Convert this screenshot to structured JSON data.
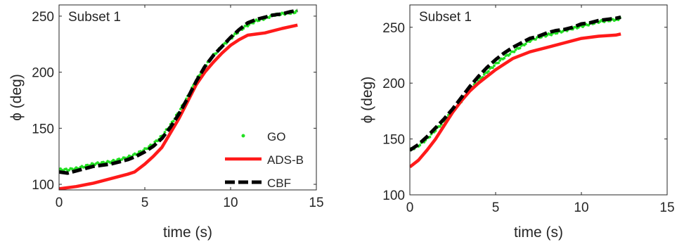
{
  "chart_data": [
    {
      "type": "line",
      "annotation": "Subset 1",
      "xlabel": "time (s)",
      "ylabel": "ϕ (deg)",
      "xlim": [
        0,
        15
      ],
      "ylim": [
        95,
        260
      ],
      "xticks": [
        0,
        5,
        10,
        15
      ],
      "yticks": [
        100,
        150,
        200,
        250
      ],
      "grid": false,
      "legend_position": "lower-right",
      "series": [
        {
          "name": "GO",
          "style": "dots",
          "color": "#22e022",
          "x": [
            0,
            0.5,
            1,
            1.5,
            2,
            2.5,
            3,
            3.5,
            4,
            4.5,
            5,
            5.5,
            6,
            6.5,
            7,
            7.5,
            8,
            8.5,
            9,
            9.5,
            10,
            10.5,
            11,
            11.5,
            12,
            12.5,
            13,
            13.5,
            13.9
          ],
          "y": [
            113,
            113,
            114,
            116,
            118,
            119,
            120,
            122,
            124,
            127,
            131,
            136,
            143,
            153,
            165,
            178,
            193,
            205,
            215,
            223,
            230,
            237,
            242,
            246,
            248,
            251,
            252,
            253,
            254
          ]
        },
        {
          "name": "ADS-B",
          "style": "solid",
          "color": "#ff1a1a",
          "x": [
            0,
            1,
            2,
            3,
            4,
            4.4,
            5,
            5.5,
            6,
            6.5,
            7,
            7.5,
            8,
            8.5,
            9,
            9.5,
            10,
            10.5,
            11,
            11.5,
            12,
            13,
            13.9
          ],
          "y": [
            96,
            98,
            101,
            105,
            109,
            111,
            118,
            125,
            133,
            146,
            159,
            174,
            189,
            200,
            209,
            217,
            224,
            229,
            233,
            234,
            235,
            239,
            242
          ]
        },
        {
          "name": "CBF",
          "style": "dashed",
          "color": "#000000",
          "x": [
            0,
            0.5,
            1,
            1.5,
            2,
            2.5,
            3,
            3.5,
            4,
            4.5,
            5,
            5.5,
            6,
            6.5,
            7,
            7.5,
            8,
            8.5,
            9,
            9.5,
            10,
            10.5,
            11,
            11.5,
            12,
            12.5,
            13,
            13.5,
            13.9
          ],
          "y": [
            111,
            110,
            112,
            114,
            116,
            117,
            118,
            120,
            122,
            125,
            129,
            134,
            141,
            151,
            163,
            177,
            192,
            205,
            215,
            223,
            231,
            238,
            244,
            247,
            249,
            251,
            252,
            254,
            255
          ]
        }
      ]
    },
    {
      "type": "line",
      "annotation": "Subset 1",
      "xlabel": "time (s)",
      "ylabel": "ϕ (deg)",
      "xlim": [
        0,
        15
      ],
      "ylim": [
        100,
        270
      ],
      "xticks": [
        0,
        5,
        10,
        15
      ],
      "yticks": [
        100,
        150,
        200,
        250
      ],
      "grid": false,
      "legend_position": "none",
      "series": [
        {
          "name": "GO",
          "style": "dots",
          "color": "#22e022",
          "x": [
            0,
            0.5,
            1,
            1.5,
            2,
            2.5,
            3,
            3.5,
            4,
            4.5,
            5,
            5.5,
            6,
            6.5,
            7,
            7.5,
            8,
            8.5,
            9,
            9.5,
            10,
            10.5,
            11,
            11.5,
            12,
            12.3
          ],
          "y": [
            140,
            144,
            150,
            158,
            166,
            175,
            184,
            194,
            202,
            210,
            217,
            223,
            228,
            233,
            238,
            241,
            243,
            245,
            247,
            249,
            251,
            253,
            255,
            256,
            257,
            258
          ]
        },
        {
          "name": "ADS-B",
          "style": "solid",
          "color": "#ff1a1a",
          "x": [
            0,
            0.5,
            1,
            1.5,
            2,
            2.5,
            3,
            3.5,
            4,
            5,
            6,
            7,
            8,
            9,
            10,
            11,
            12,
            12.3
          ],
          "y": [
            125,
            131,
            140,
            150,
            162,
            174,
            184,
            193,
            200,
            212,
            222,
            228,
            232,
            236,
            240,
            242,
            243,
            244
          ]
        },
        {
          "name": "CBF",
          "style": "dashed",
          "color": "#000000",
          "x": [
            0,
            0.5,
            1,
            1.5,
            2,
            2.5,
            3,
            3.5,
            4,
            4.5,
            5,
            5.5,
            6,
            6.5,
            7,
            7.5,
            8,
            8.5,
            9,
            9.5,
            10,
            10.5,
            11,
            11.5,
            12,
            12.3
          ],
          "y": [
            140,
            145,
            152,
            160,
            168,
            177,
            187,
            197,
            206,
            214,
            221,
            227,
            232,
            236,
            240,
            242,
            245,
            247,
            248,
            250,
            253,
            254,
            256,
            257,
            258,
            259
          ]
        }
      ]
    }
  ]
}
